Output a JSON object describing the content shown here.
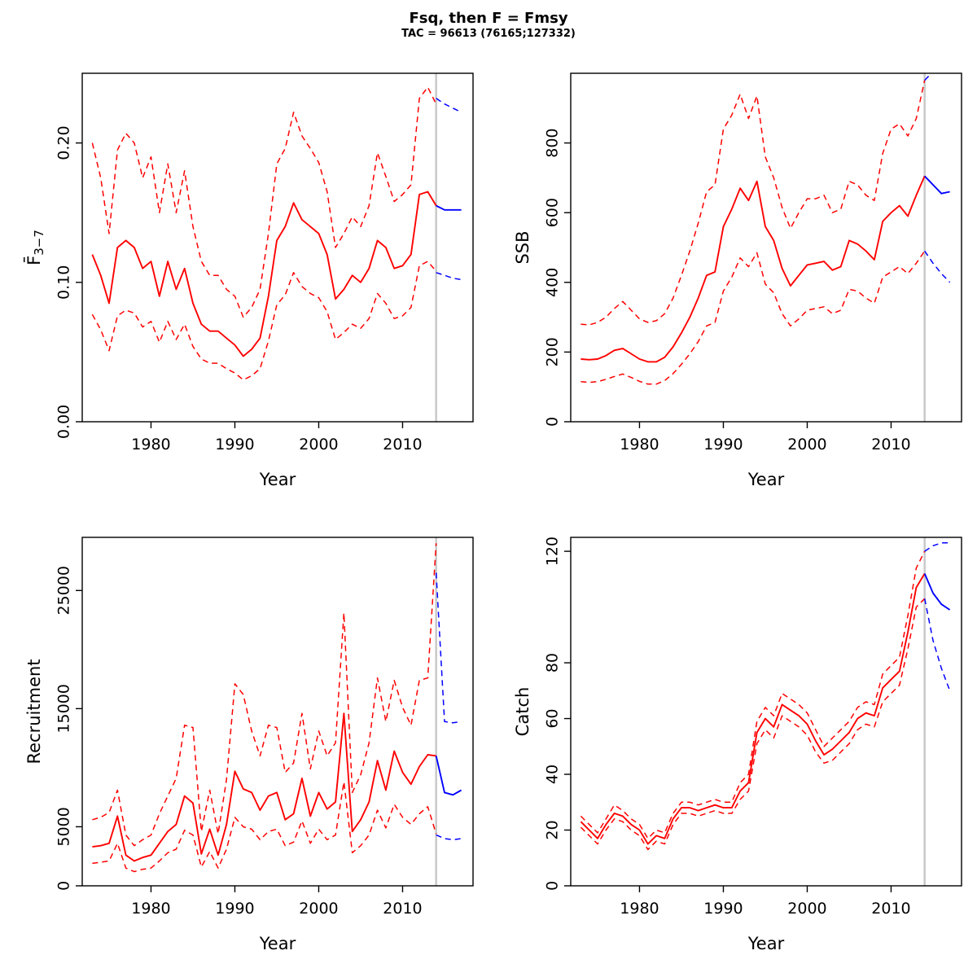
{
  "header": {
    "title": "Fsq, then F = Fmsy",
    "subtitle": "TAC = 96613 (76165;127332)"
  },
  "colors": {
    "red": "#FF0000",
    "blue": "#0000FF",
    "vline": "#C9C9C9",
    "axis": "#000000"
  },
  "chart_data": [
    {
      "type": "line",
      "name": "fbar",
      "xlabel": "Year",
      "ylabel_main": "F̄",
      "ylabel_sub": "3−7",
      "xlim": [
        1971.8,
        2018.4
      ],
      "ylim": [
        0,
        0.25
      ],
      "vline": 2014,
      "xticks": [
        {
          "v": 1980,
          "label": "1980"
        },
        {
          "v": 1990,
          "label": "1990"
        },
        {
          "v": 2000,
          "label": "2000"
        },
        {
          "v": 2010,
          "label": "2010"
        }
      ],
      "yticks": [
        {
          "v": 0,
          "label": "0.00"
        },
        {
          "v": 0.1,
          "label": "0.10"
        },
        {
          "v": 0.2,
          "label": "0.20"
        }
      ],
      "series": [
        {
          "name": "upper-hist",
          "color": "red",
          "dash": true,
          "x0": 1973,
          "y": [
            0.2,
            0.175,
            0.135,
            0.195,
            0.207,
            0.2,
            0.175,
            0.19,
            0.15,
            0.185,
            0.15,
            0.18,
            0.14,
            0.115,
            0.105,
            0.105,
            0.095,
            0.09,
            0.075,
            0.082,
            0.095,
            0.135,
            0.185,
            0.196,
            0.222,
            0.205,
            0.196,
            0.186,
            0.165,
            0.125,
            0.135,
            0.147,
            0.14,
            0.155,
            0.193,
            0.176,
            0.158,
            0.163,
            0.17,
            0.232,
            0.24,
            0.228
          ]
        },
        {
          "name": "lower-hist",
          "color": "red",
          "dash": true,
          "x0": 1973,
          "y": [
            0.077,
            0.066,
            0.051,
            0.076,
            0.08,
            0.078,
            0.068,
            0.072,
            0.057,
            0.072,
            0.059,
            0.07,
            0.054,
            0.045,
            0.042,
            0.042,
            0.038,
            0.035,
            0.03,
            0.033,
            0.038,
            0.058,
            0.084,
            0.091,
            0.107,
            0.097,
            0.092,
            0.089,
            0.079,
            0.059,
            0.064,
            0.07,
            0.067,
            0.074,
            0.092,
            0.085,
            0.074,
            0.076,
            0.082,
            0.112,
            0.115,
            0.108
          ]
        },
        {
          "name": "median-hist",
          "color": "red",
          "dash": false,
          "x0": 1973,
          "y": [
            0.12,
            0.105,
            0.085,
            0.125,
            0.13,
            0.125,
            0.11,
            0.115,
            0.09,
            0.115,
            0.095,
            0.11,
            0.085,
            0.07,
            0.065,
            0.065,
            0.06,
            0.055,
            0.047,
            0.052,
            0.06,
            0.09,
            0.13,
            0.14,
            0.157,
            0.145,
            0.14,
            0.135,
            0.12,
            0.088,
            0.095,
            0.105,
            0.1,
            0.11,
            0.13,
            0.125,
            0.11,
            0.112,
            0.12,
            0.163,
            0.165,
            0.155
          ]
        },
        {
          "name": "upper-forecast",
          "color": "blue",
          "dash": true,
          "x0": 2014,
          "y": [
            0.232,
            0.228,
            0.225,
            0.222
          ]
        },
        {
          "name": "lower-forecast",
          "color": "blue",
          "dash": true,
          "x0": 2014,
          "y": [
            0.107,
            0.105,
            0.103,
            0.102
          ]
        },
        {
          "name": "median-forecast",
          "color": "blue",
          "dash": false,
          "x0": 2014,
          "y": [
            0.155,
            0.152,
            0.152,
            0.152
          ]
        }
      ]
    },
    {
      "type": "line",
      "name": "ssb",
      "xlabel": "Year",
      "ylabel_main": "SSB",
      "xlim": [
        1971.8,
        2018.4
      ],
      "ylim": [
        0,
        1000
      ],
      "vline": 2014,
      "xticks": [
        {
          "v": 1980,
          "label": "1980"
        },
        {
          "v": 1990,
          "label": "1990"
        },
        {
          "v": 2000,
          "label": "2000"
        },
        {
          "v": 2010,
          "label": "2010"
        }
      ],
      "yticks": [
        {
          "v": 0,
          "label": "0"
        },
        {
          "v": 200,
          "label": "200"
        },
        {
          "v": 400,
          "label": "400"
        },
        {
          "v": 600,
          "label": "600"
        },
        {
          "v": 800,
          "label": "800"
        }
      ],
      "series": [
        {
          "name": "upper-hist",
          "color": "red",
          "dash": true,
          "x0": 1973,
          "y": [
            280,
            278,
            285,
            300,
            325,
            345,
            320,
            295,
            285,
            290,
            310,
            355,
            420,
            490,
            570,
            660,
            680,
            840,
            880,
            940,
            870,
            935,
            760,
            700,
            615,
            555,
            600,
            640,
            640,
            650,
            600,
            610,
            690,
            680,
            650,
            635,
            770,
            840,
            855,
            820,
            870,
            980
          ]
        },
        {
          "name": "lower-hist",
          "color": "red",
          "dash": true,
          "x0": 1973,
          "y": [
            115,
            113,
            115,
            122,
            130,
            137,
            127,
            116,
            108,
            108,
            118,
            138,
            165,
            195,
            230,
            275,
            285,
            375,
            415,
            470,
            445,
            485,
            395,
            370,
            310,
            275,
            295,
            320,
            325,
            330,
            310,
            320,
            380,
            375,
            355,
            340,
            415,
            430,
            445,
            425,
            455,
            490
          ]
        },
        {
          "name": "median-hist",
          "color": "red",
          "dash": false,
          "x0": 1973,
          "y": [
            180,
            178,
            180,
            190,
            205,
            210,
            195,
            180,
            172,
            172,
            185,
            215,
            255,
            300,
            355,
            420,
            430,
            560,
            610,
            670,
            635,
            690,
            560,
            520,
            440,
            390,
            420,
            450,
            455,
            460,
            435,
            445,
            520,
            510,
            490,
            465,
            575,
            600,
            620,
            590,
            650,
            705
          ]
        },
        {
          "name": "upper-forecast",
          "color": "blue",
          "dash": true,
          "x0": 2014,
          "y": [
            980,
            1005,
            1020,
            1030
          ]
        },
        {
          "name": "lower-forecast",
          "color": "blue",
          "dash": true,
          "x0": 2014,
          "y": [
            490,
            455,
            425,
            400
          ]
        },
        {
          "name": "median-forecast",
          "color": "blue",
          "dash": false,
          "x0": 2014,
          "y": [
            705,
            680,
            655,
            660
          ]
        }
      ]
    },
    {
      "type": "line",
      "name": "recruitment",
      "xlabel": "Year",
      "ylabel_main": "Recruitment",
      "xlim": [
        1971.8,
        2018.4
      ],
      "ylim": [
        0,
        29500
      ],
      "vline": 2014,
      "xticks": [
        {
          "v": 1980,
          "label": "1980"
        },
        {
          "v": 1990,
          "label": "1990"
        },
        {
          "v": 2000,
          "label": "2000"
        },
        {
          "v": 2010,
          "label": "2010"
        }
      ],
      "yticks": [
        {
          "v": 0,
          "label": "0"
        },
        {
          "v": 5000,
          "label": "5000"
        },
        {
          "v": 15000,
          "label": "15000"
        },
        {
          "v": 25000,
          "label": "25000"
        }
      ],
      "series": [
        {
          "name": "upper-hist",
          "color": "red",
          "dash": true,
          "x0": 1973,
          "y": [
            5600,
            5800,
            6200,
            8100,
            4300,
            3400,
            3900,
            4300,
            6100,
            7600,
            9100,
            13600,
            13400,
            4600,
            8100,
            4400,
            9000,
            17100,
            16200,
            13100,
            11000,
            13600,
            13400,
            9600,
            10400,
            14600,
            9900,
            13100,
            11000,
            12100,
            23100,
            7900,
            9400,
            12100,
            17600,
            13900,
            17400,
            15100,
            13600,
            17400,
            17600,
            29000
          ]
        },
        {
          "name": "lower-hist",
          "color": "red",
          "dash": true,
          "x0": 1973,
          "y": [
            1900,
            2000,
            2100,
            3600,
            1500,
            1200,
            1400,
            1500,
            2100,
            2800,
            3100,
            4700,
            4300,
            1600,
            2900,
            1500,
            3100,
            5800,
            5000,
            4800,
            3900,
            4600,
            4800,
            3400,
            3700,
            5500,
            3600,
            4800,
            3900,
            4300,
            8800,
            2800,
            3400,
            4300,
            6400,
            4900,
            6900,
            5800,
            5200,
            6100,
            6700,
            4400
          ]
        },
        {
          "name": "median-hist",
          "color": "red",
          "dash": false,
          "x0": 1973,
          "y": [
            3300,
            3400,
            3600,
            5900,
            2600,
            2100,
            2400,
            2600,
            3600,
            4600,
            5200,
            7600,
            7000,
            2700,
            4800,
            2600,
            5200,
            9700,
            8200,
            7900,
            6400,
            7600,
            7900,
            5600,
            6100,
            9100,
            5900,
            7900,
            6500,
            7100,
            14600,
            4600,
            5600,
            7100,
            10600,
            8100,
            11400,
            9600,
            8600,
            10100,
            11100,
            11000
          ]
        },
        {
          "name": "upper-forecast",
          "color": "blue",
          "dash": true,
          "x0": 2014,
          "y": [
            26500,
            13900,
            13800,
            13900
          ]
        },
        {
          "name": "lower-forecast",
          "color": "blue",
          "dash": true,
          "x0": 2014,
          "y": [
            4300,
            4000,
            3900,
            4000
          ]
        },
        {
          "name": "median-forecast",
          "color": "blue",
          "dash": false,
          "x0": 2014,
          "y": [
            11000,
            7900,
            7700,
            8100
          ]
        }
      ]
    },
    {
      "type": "line",
      "name": "catch",
      "xlabel": "Year",
      "ylabel_main": "Catch",
      "xlim": [
        1971.8,
        2018.4
      ],
      "ylim": [
        0,
        125
      ],
      "vline": 2014,
      "xticks": [
        {
          "v": 1980,
          "label": "1980"
        },
        {
          "v": 1990,
          "label": "1990"
        },
        {
          "v": 2000,
          "label": "2000"
        },
        {
          "v": 2010,
          "label": "2010"
        }
      ],
      "yticks": [
        {
          "v": 0,
          "label": "0"
        },
        {
          "v": 20,
          "label": "20"
        },
        {
          "v": 40,
          "label": "40"
        },
        {
          "v": 60,
          "label": "60"
        },
        {
          "v": 80,
          "label": "80"
        },
        {
          "v": 120,
          "label": "120"
        }
      ],
      "series": [
        {
          "name": "upper-hist",
          "color": "red",
          "dash": true,
          "x0": 1973,
          "y": [
            25,
            22,
            19,
            24,
            29,
            27,
            24,
            22,
            17,
            20,
            19,
            26,
            30,
            30,
            29,
            30,
            31,
            30,
            30,
            37,
            40,
            59,
            64,
            61,
            69,
            67,
            65,
            62,
            56,
            50,
            53,
            56,
            59,
            64,
            66,
            65,
            76,
            79,
            82,
            97,
            114,
            120
          ]
        },
        {
          "name": "lower-hist",
          "color": "red",
          "dash": true,
          "x0": 1973,
          "y": [
            21,
            18,
            15,
            20,
            24,
            23,
            20,
            18,
            13,
            16,
            15,
            22,
            26,
            26,
            25,
            26,
            27,
            26,
            26,
            31,
            34,
            51,
            56,
            53,
            61,
            59,
            57,
            54,
            48,
            44,
            45,
            48,
            51,
            56,
            58,
            57,
            66,
            69,
            72,
            85,
            100,
            103
          ]
        },
        {
          "name": "median-hist",
          "color": "red",
          "dash": false,
          "x0": 1973,
          "y": [
            23,
            20,
            17,
            22,
            26,
            25,
            22,
            20,
            15,
            18,
            17,
            24,
            28,
            28,
            27,
            28,
            29,
            28,
            28,
            34,
            37,
            55,
            60,
            57,
            65,
            63,
            61,
            58,
            52,
            47,
            49,
            52,
            55,
            60,
            62,
            61,
            71,
            74,
            77,
            91,
            107,
            112
          ]
        },
        {
          "name": "upper-forecast",
          "color": "blue",
          "dash": true,
          "x0": 2014,
          "y": [
            120,
            122,
            123,
            123
          ]
        },
        {
          "name": "lower-forecast",
          "color": "blue",
          "dash": true,
          "x0": 2014,
          "y": [
            103,
            88,
            78,
            70
          ]
        },
        {
          "name": "median-forecast",
          "color": "blue",
          "dash": false,
          "x0": 2014,
          "y": [
            112,
            105,
            101,
            99
          ]
        }
      ]
    }
  ]
}
